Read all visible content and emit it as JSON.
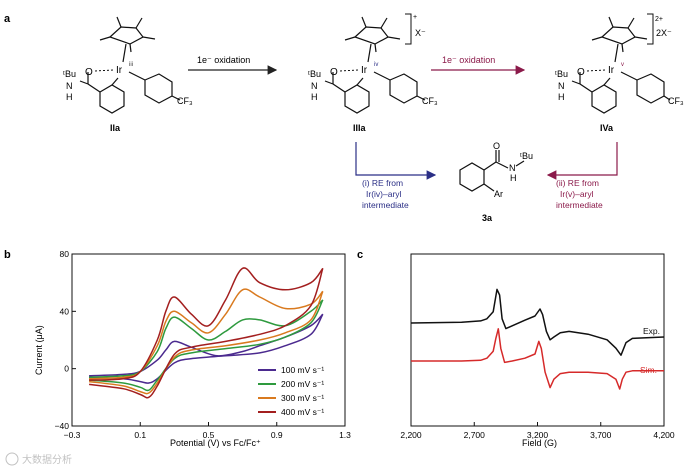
{
  "panels": {
    "a": "a",
    "b": "b",
    "c": "c"
  },
  "scheme": {
    "compounds": [
      {
        "label": "IIa",
        "ox_state": "iii",
        "charge": "",
        "counterion": ""
      },
      {
        "label": "IIIa",
        "ox_state": "iv",
        "charge": "+",
        "counterion": "X⁻"
      },
      {
        "label": "IVa",
        "ox_state": "v",
        "charge": "2+",
        "counterion": "2X⁻"
      }
    ],
    "arrows": [
      {
        "label": "1e⁻ oxidation",
        "color": "#222222"
      },
      {
        "label": "1e⁻ oxidation",
        "color": "#8b1a4a"
      }
    ],
    "fragments": {
      "tbu": "ᵗBu",
      "nh": "N",
      "h": "H",
      "o": "O",
      "ir": "Ir",
      "cf3": "CF₃",
      "ar": "Ar"
    },
    "product": {
      "label": "3a",
      "tbu": "ᵗBu",
      "nh": "N",
      "h": "H"
    },
    "re_left": {
      "lines": [
        "(i) RE from",
        "Ir(iv)–aryl",
        "intermediate"
      ],
      "color": "#2b2f86"
    },
    "re_right": {
      "lines": [
        "(ii) RE from",
        "Ir(v)–aryl",
        "intermediate"
      ],
      "color": "#8b1a4a"
    }
  },
  "chart_data": [
    {
      "type": "line",
      "panel": "b",
      "xlabel": "Potential (V) vs Fc/Fc⁺",
      "ylabel": "Current (μA)",
      "xlim": [
        -0.3,
        1.3
      ],
      "ylim": [
        -40,
        80
      ],
      "xticks": [
        "−0.3",
        "0.1",
        "0.5",
        "0.9",
        "1.3"
      ],
      "yticks": [
        "−40",
        "0",
        "40",
        "80"
      ],
      "legend_position": "bottom-right",
      "series": [
        {
          "name": "100 mV s⁻¹",
          "color": "#4b2a8f",
          "forward": {
            "x": [
              -0.2,
              0.0,
              0.1,
              0.2,
              0.25,
              0.3,
              0.4,
              0.55,
              0.7,
              0.8,
              0.95,
              1.1,
              1.17
            ],
            "y": [
              -5,
              -4,
              -2,
              6,
              13,
              19,
              15,
              9,
              12,
              16,
              22,
              30,
              38
            ]
          },
          "reverse": {
            "x": [
              1.17,
              1.1,
              0.95,
              0.8,
              0.6,
              0.4,
              0.3,
              0.2,
              0.15,
              0.1,
              0.0,
              -0.2
            ],
            "y": [
              38,
              24,
              16,
              11,
              9,
              7,
              4,
              -7,
              -10,
              -9,
              -7,
              -6
            ]
          }
        },
        {
          "name": "200 mV s⁻¹",
          "color": "#2e9a3e",
          "forward": {
            "x": [
              -0.2,
              0.0,
              0.1,
              0.2,
              0.25,
              0.3,
              0.4,
              0.5,
              0.6,
              0.7,
              0.8,
              0.95,
              1.1,
              1.17
            ],
            "y": [
              -6,
              -5,
              -2,
              12,
              28,
              36,
              28,
              20,
              26,
              34,
              34,
              30,
              40,
              48
            ]
          },
          "reverse": {
            "x": [
              1.17,
              1.1,
              0.95,
              0.8,
              0.6,
              0.4,
              0.3,
              0.2,
              0.15,
              0.1,
              0.0,
              -0.2
            ],
            "y": [
              48,
              32,
              22,
              17,
              14,
              11,
              7,
              -8,
              -15,
              -13,
              -10,
              -8
            ]
          }
        },
        {
          "name": "300 mV s⁻¹",
          "color": "#d97a1f",
          "forward": {
            "x": [
              -0.2,
              0.0,
              0.1,
              0.2,
              0.25,
              0.3,
              0.4,
              0.5,
              0.6,
              0.7,
              0.8,
              0.95,
              1.1,
              1.17
            ],
            "y": [
              -7,
              -6,
              -2,
              16,
              33,
              40,
              32,
              25,
              38,
              55,
              50,
              42,
              45,
              54
            ]
          },
          "reverse": {
            "x": [
              1.17,
              1.1,
              0.95,
              0.8,
              0.6,
              0.4,
              0.3,
              0.2,
              0.15,
              0.1,
              0.0,
              -0.2
            ],
            "y": [
              54,
              34,
              25,
              20,
              16,
              13,
              8,
              -10,
              -17,
              -16,
              -12,
              -9
            ]
          }
        },
        {
          "name": "400 mV s⁻¹",
          "color": "#a31f1f",
          "forward": {
            "x": [
              -0.2,
              0.0,
              0.1,
              0.2,
              0.25,
              0.3,
              0.4,
              0.5,
              0.6,
              0.7,
              0.8,
              0.95,
              1.1,
              1.17
            ],
            "y": [
              -8,
              -7,
              -2,
              20,
              40,
              50,
              38,
              30,
              48,
              70,
              60,
              55,
              60,
              70
            ]
          },
          "reverse": {
            "x": [
              1.17,
              1.1,
              0.95,
              0.8,
              0.6,
              0.4,
              0.3,
              0.2,
              0.15,
              0.1,
              0.0,
              -0.2
            ],
            "y": [
              70,
              44,
              30,
              24,
              19,
              15,
              10,
              -12,
              -20,
              -18,
              -14,
              -11
            ]
          }
        }
      ]
    },
    {
      "type": "line",
      "panel": "c",
      "xlabel": "Field (G)",
      "xlim": [
        2200,
        4200
      ],
      "xticks": [
        "2,200",
        "2,700",
        "3,200",
        "3,700",
        "4,200"
      ],
      "series": [
        {
          "name": "Exp.",
          "color": "#111111",
          "x": [
            2200,
            2600,
            2750,
            2800,
            2850,
            2880,
            2900,
            2920,
            2950,
            3000,
            3100,
            3180,
            3220,
            3240,
            3270,
            3300,
            3330,
            3380,
            3450,
            3600,
            3750,
            3820,
            3860,
            3900,
            3950,
            4200
          ],
          "y": [
            0,
            0.05,
            0.15,
            0.3,
            0.8,
            2.4,
            2.0,
            0.3,
            -0.4,
            -0.2,
            0.2,
            0.5,
            1.0,
            0.6,
            -0.6,
            -1.2,
            -1.0,
            -0.7,
            -0.6,
            -0.8,
            -1.2,
            -1.8,
            -2.3,
            -1.4,
            -1.1,
            -1.0
          ]
        },
        {
          "name": "Sim.",
          "color": "#d62a2a",
          "x": [
            2200,
            2600,
            2750,
            2800,
            2850,
            2870,
            2890,
            2910,
            2940,
            3000,
            3100,
            3180,
            3210,
            3230,
            3260,
            3300,
            3330,
            3380,
            3450,
            3600,
            3750,
            3820,
            3850,
            3870,
            3900,
            3950,
            4200
          ],
          "y": [
            0,
            0,
            0.05,
            0.2,
            0.7,
            1.6,
            2.3,
            0.9,
            -0.1,
            0,
            0.2,
            0.5,
            1.4,
            0.9,
            -0.8,
            -1.9,
            -1.3,
            -0.9,
            -0.8,
            -0.8,
            -0.9,
            -1.3,
            -2.0,
            -1.3,
            -0.8,
            -0.7,
            -0.7
          ]
        }
      ]
    }
  ],
  "watermark": "大数据分析"
}
